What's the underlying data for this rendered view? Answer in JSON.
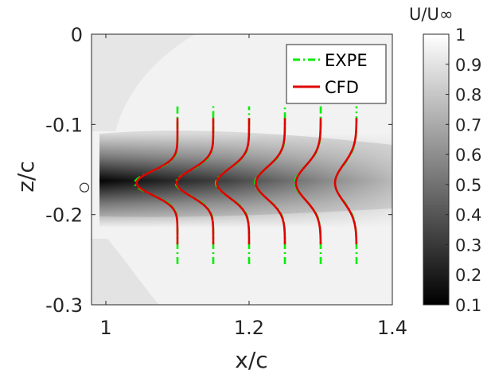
{
  "chart_data": {
    "type": "contour_with_profiles",
    "xlabel": "x/c",
    "ylabel": "z/c",
    "xlim": [
      0.98,
      1.4
    ],
    "ylim": [
      -0.3,
      0
    ],
    "x_ticks": [
      1,
      1.2,
      1.4
    ],
    "x_tick_labels": [
      "1",
      "1.2",
      "1.4"
    ],
    "y_ticks": [
      0,
      -0.1,
      -0.2,
      -0.3
    ],
    "y_tick_labels": [
      "0",
      "-0.1",
      "-0.2",
      "-0.3"
    ],
    "grid": false,
    "legend_position": "top-right",
    "colorbar": {
      "title": "U/U∞",
      "range": [
        0.1,
        1
      ],
      "ticks": [
        1,
        0.9,
        0.8,
        0.7,
        0.6,
        0.5,
        0.4,
        0.3,
        0.2,
        0.1
      ],
      "tick_labels": [
        "1",
        "0.9",
        "0.8",
        "0.7",
        "0.6",
        "0.5",
        "0.4",
        "0.3",
        "0.2",
        "0.1"
      ],
      "colormap": "gray"
    },
    "wake": {
      "center_z": -0.165,
      "min_velocity": 0.1,
      "freestream_velocity": 1
    },
    "marker": {
      "shape": "circle",
      "x": 0.97,
      "z": -0.17
    },
    "profile_stations": [
      1.1,
      1.15,
      1.2,
      1.25,
      1.3,
      1.35
    ],
    "profile_scale": 0.15,
    "series": [
      {
        "name": "EXPE",
        "color": "#00ee00",
        "dash": "dash-dot",
        "z_range": [
          -0.255,
          -0.08
        ],
        "velocity_deficit": [
          0.4,
          0.35,
          0.31,
          0.28,
          0.24,
          0.2
        ],
        "half_width": [
          0.018,
          0.02,
          0.022,
          0.024,
          0.026,
          0.028
        ]
      },
      {
        "name": "CFD",
        "color": "#e00000",
        "dash": "solid",
        "z_range": [
          -0.233,
          -0.093
        ],
        "velocity_deficit": [
          0.38,
          0.34,
          0.3,
          0.27,
          0.23,
          0.2
        ],
        "half_width": [
          0.019,
          0.021,
          0.023,
          0.025,
          0.027,
          0.029
        ]
      }
    ]
  }
}
